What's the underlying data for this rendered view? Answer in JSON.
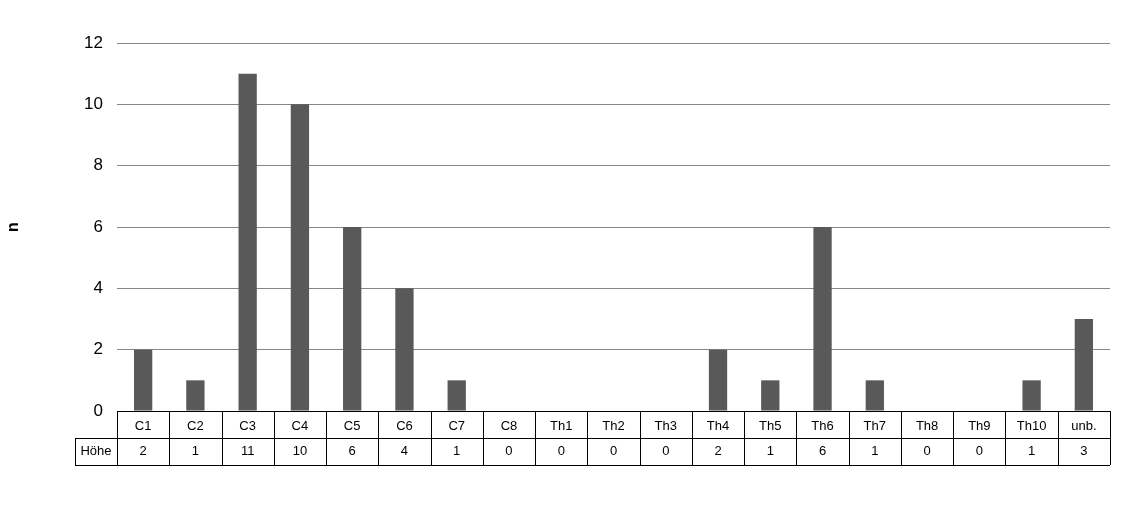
{
  "chart_data": {
    "type": "bar",
    "ylabel": "n",
    "categories": [
      "C1",
      "C2",
      "C3",
      "C4",
      "C5",
      "C6",
      "C7",
      "C8",
      "Th1",
      "Th2",
      "Th3",
      "Th4",
      "Th5",
      "Th6",
      "Th7",
      "Th8",
      "Th9",
      "Th10",
      "unb."
    ],
    "series": [
      {
        "name": "Höhe",
        "color": "#595959",
        "values": [
          2,
          1,
          11,
          10,
          6,
          4,
          1,
          0,
          0,
          0,
          0,
          2,
          1,
          6,
          1,
          0,
          0,
          1,
          3
        ]
      }
    ],
    "ylim": [
      0,
      12
    ],
    "yticks": [
      0,
      2,
      4,
      6,
      8,
      10,
      12
    ],
    "grid": "y",
    "legend": false,
    "data_labels": true
  }
}
